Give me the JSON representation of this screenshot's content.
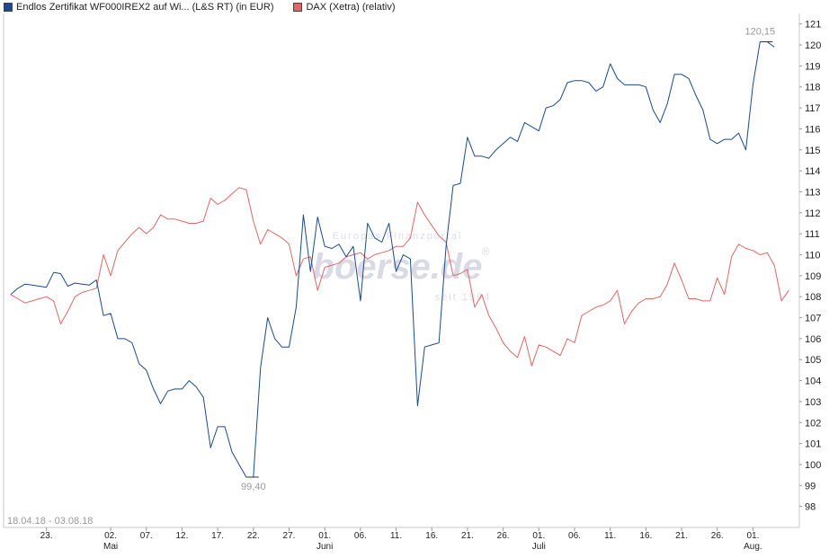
{
  "legend": [
    {
      "label": "Endlos Zertifikat WF000IREX2 auf Wi... (L&S RT) (in EUR)",
      "color": "#1a4b8a"
    },
    {
      "label": "DAX (Xetra) (relativ)",
      "color": "#e06666"
    }
  ],
  "watermark": {
    "top": "Europas Finanzportal",
    "logo": "boerse.de",
    "registered": "®",
    "bottom": "seit 1994"
  },
  "chart_data": {
    "type": "line",
    "date_range_label": "18.04.18 - 03.08.18",
    "ylim": [
      97,
      121.5
    ],
    "y_ticks": [
      98,
      99,
      100,
      101,
      102,
      103,
      104,
      105,
      106,
      107,
      108,
      109,
      110,
      111,
      112,
      113,
      114,
      115,
      116,
      117,
      118,
      119,
      120,
      121
    ],
    "x_ticks": [
      {
        "day": 5,
        "label": "23."
      },
      {
        "day": 14,
        "label": "02.",
        "sub": "Mai"
      },
      {
        "day": 19,
        "label": "07."
      },
      {
        "day": 24,
        "label": "12."
      },
      {
        "day": 29,
        "label": "17."
      },
      {
        "day": 34,
        "label": "22."
      },
      {
        "day": 39,
        "label": "27."
      },
      {
        "day": 44,
        "label": "01.",
        "sub": "Juni"
      },
      {
        "day": 49,
        "label": "06."
      },
      {
        "day": 54,
        "label": "11."
      },
      {
        "day": 59,
        "label": "16."
      },
      {
        "day": 64,
        "label": "21."
      },
      {
        "day": 69,
        "label": "26."
      },
      {
        "day": 74,
        "label": "01.",
        "sub": "Juli"
      },
      {
        "day": 79,
        "label": "06."
      },
      {
        "day": 84,
        "label": "11."
      },
      {
        "day": 89,
        "label": "16."
      },
      {
        "day": 94,
        "label": "21."
      },
      {
        "day": 99,
        "label": "26."
      },
      {
        "day": 104,
        "label": "01.",
        "sub": "Aug."
      }
    ],
    "annotations": [
      {
        "text": "120,15",
        "series": 0,
        "day": 106,
        "value": 120.15
      },
      {
        "text": "99,40",
        "series": 0,
        "day": 34,
        "value": 99.4
      }
    ],
    "series": [
      {
        "name": "Endlos Zertifikat WF000IREX2 auf Wi... (L&S RT) (in EUR)",
        "color": "#1a4b8a",
        "points": [
          [
            0,
            108.1
          ],
          [
            1,
            108.4
          ],
          [
            2,
            108.6
          ],
          [
            3,
            108.55
          ],
          [
            4,
            108.5
          ],
          [
            5,
            108.45
          ],
          [
            6,
            109.15
          ],
          [
            7,
            109.1
          ],
          [
            8,
            108.5
          ],
          [
            9,
            108.65
          ],
          [
            10,
            108.6
          ],
          [
            11,
            108.55
          ],
          [
            12,
            108.8
          ],
          [
            13,
            107.1
          ],
          [
            14,
            107.2
          ],
          [
            15,
            106.0
          ],
          [
            16,
            106.0
          ],
          [
            17,
            105.8
          ],
          [
            18,
            104.8
          ],
          [
            19,
            104.5
          ],
          [
            20,
            103.6
          ],
          [
            21,
            102.9
          ],
          [
            22,
            103.5
          ],
          [
            23,
            103.6
          ],
          [
            24,
            103.6
          ],
          [
            25,
            104.0
          ],
          [
            26,
            103.7
          ],
          [
            27,
            103.2
          ],
          [
            28,
            100.8
          ],
          [
            29,
            101.8
          ],
          [
            30,
            101.8
          ],
          [
            31,
            100.6
          ],
          [
            32,
            100.0
          ],
          [
            33,
            99.4
          ],
          [
            34,
            99.4
          ],
          [
            35,
            104.6
          ],
          [
            36,
            107.0
          ],
          [
            37,
            106.0
          ],
          [
            38,
            105.6
          ],
          [
            39,
            105.6
          ],
          [
            40,
            107.5
          ],
          [
            41,
            111.9
          ],
          [
            42,
            109.2
          ],
          [
            43,
            111.8
          ],
          [
            44,
            110.4
          ],
          [
            45,
            110.3
          ],
          [
            46,
            110.5
          ],
          [
            47,
            109.9
          ],
          [
            48,
            110.4
          ],
          [
            49,
            107.8
          ],
          [
            50,
            111.5
          ],
          [
            51,
            110.8
          ],
          [
            52,
            110.6
          ],
          [
            53,
            111.5
          ],
          [
            54,
            109.2
          ],
          [
            55,
            110.0
          ],
          [
            56,
            109.8
          ],
          [
            57,
            102.8
          ],
          [
            58,
            105.6
          ],
          [
            59,
            105.7
          ],
          [
            60,
            105.8
          ],
          [
            61,
            110.4
          ],
          [
            62,
            113.3
          ],
          [
            63,
            113.4
          ],
          [
            64,
            115.6
          ],
          [
            65,
            114.7
          ],
          [
            66,
            114.7
          ],
          [
            67,
            114.6
          ],
          [
            68,
            115.0
          ],
          [
            69,
            115.3
          ],
          [
            70,
            115.6
          ],
          [
            71,
            115.4
          ],
          [
            72,
            116.3
          ],
          [
            73,
            116.1
          ],
          [
            74,
            115.9
          ],
          [
            75,
            117.0
          ],
          [
            76,
            117.1
          ],
          [
            77,
            117.4
          ],
          [
            78,
            118.2
          ],
          [
            79,
            118.3
          ],
          [
            80,
            118.3
          ],
          [
            81,
            118.2
          ],
          [
            82,
            117.8
          ],
          [
            83,
            118.0
          ],
          [
            84,
            119.1
          ],
          [
            85,
            118.4
          ],
          [
            86,
            118.1
          ],
          [
            87,
            118.1
          ],
          [
            88,
            118.1
          ],
          [
            89,
            118.0
          ],
          [
            90,
            116.9
          ],
          [
            91,
            116.3
          ],
          [
            92,
            117.2
          ],
          [
            93,
            118.6
          ],
          [
            94,
            118.6
          ],
          [
            95,
            118.4
          ],
          [
            96,
            117.6
          ],
          [
            97,
            116.9
          ],
          [
            98,
            115.5
          ],
          [
            99,
            115.3
          ],
          [
            100,
            115.5
          ],
          [
            101,
            115.5
          ],
          [
            102,
            115.8
          ],
          [
            103,
            115.0
          ],
          [
            104,
            118.1
          ],
          [
            105,
            120.15
          ],
          [
            106,
            120.15
          ],
          [
            107,
            119.9
          ]
        ]
      },
      {
        "name": "DAX (Xetra) (relativ)",
        "color": "#e06666",
        "points": [
          [
            0,
            108.1
          ],
          [
            1,
            107.9
          ],
          [
            2,
            107.7
          ],
          [
            3,
            107.8
          ],
          [
            4,
            107.9
          ],
          [
            5,
            108.0
          ],
          [
            6,
            107.8
          ],
          [
            7,
            106.7
          ],
          [
            8,
            107.3
          ],
          [
            9,
            108.0
          ],
          [
            10,
            108.2
          ],
          [
            11,
            108.3
          ],
          [
            12,
            108.4
          ],
          [
            13,
            110.0
          ],
          [
            14,
            109.0
          ],
          [
            15,
            110.2
          ],
          [
            16,
            110.6
          ],
          [
            17,
            111.0
          ],
          [
            18,
            111.3
          ],
          [
            19,
            111.0
          ],
          [
            20,
            111.3
          ],
          [
            21,
            111.9
          ],
          [
            22,
            111.7
          ],
          [
            23,
            111.7
          ],
          [
            24,
            111.6
          ],
          [
            25,
            111.5
          ],
          [
            26,
            111.5
          ],
          [
            27,
            111.6
          ],
          [
            28,
            112.7
          ],
          [
            29,
            112.4
          ],
          [
            30,
            112.6
          ],
          [
            31,
            112.9
          ],
          [
            32,
            113.2
          ],
          [
            33,
            113.1
          ],
          [
            34,
            111.6
          ],
          [
            35,
            110.5
          ],
          [
            36,
            111.2
          ],
          [
            37,
            111.0
          ],
          [
            38,
            110.8
          ],
          [
            39,
            110.5
          ],
          [
            40,
            109.0
          ],
          [
            41,
            109.8
          ],
          [
            42,
            109.9
          ],
          [
            43,
            108.3
          ],
          [
            44,
            109.4
          ],
          [
            45,
            109.5
          ],
          [
            46,
            109.6
          ],
          [
            47,
            109.9
          ],
          [
            48,
            110.0
          ],
          [
            49,
            110.1
          ],
          [
            50,
            109.8
          ],
          [
            51,
            110.0
          ],
          [
            52,
            110.1
          ],
          [
            53,
            110.2
          ],
          [
            54,
            110.4
          ],
          [
            55,
            110.4
          ],
          [
            56,
            110.8
          ],
          [
            57,
            112.5
          ],
          [
            58,
            111.9
          ],
          [
            59,
            111.4
          ],
          [
            60,
            110.9
          ],
          [
            61,
            110.6
          ],
          [
            62,
            109.0
          ],
          [
            63,
            109.1
          ],
          [
            64,
            109.3
          ],
          [
            65,
            107.5
          ],
          [
            66,
            108.1
          ],
          [
            67,
            107.1
          ],
          [
            68,
            106.5
          ],
          [
            69,
            105.8
          ],
          [
            70,
            105.4
          ],
          [
            71,
            105.1
          ],
          [
            72,
            106.1
          ],
          [
            73,
            104.7
          ],
          [
            74,
            105.7
          ],
          [
            75,
            105.6
          ],
          [
            76,
            105.4
          ],
          [
            77,
            105.2
          ],
          [
            78,
            106.0
          ],
          [
            79,
            105.8
          ],
          [
            80,
            107.1
          ],
          [
            81,
            107.3
          ],
          [
            82,
            107.5
          ],
          [
            83,
            107.6
          ],
          [
            84,
            107.8
          ],
          [
            85,
            108.3
          ],
          [
            86,
            106.7
          ],
          [
            87,
            107.3
          ],
          [
            88,
            107.7
          ],
          [
            89,
            107.9
          ],
          [
            90,
            107.9
          ],
          [
            91,
            108.0
          ],
          [
            92,
            108.6
          ],
          [
            93,
            109.6
          ],
          [
            94,
            108.8
          ],
          [
            95,
            107.9
          ],
          [
            96,
            107.9
          ],
          [
            97,
            107.8
          ],
          [
            98,
            107.8
          ],
          [
            99,
            108.9
          ],
          [
            100,
            108.1
          ],
          [
            101,
            109.9
          ],
          [
            102,
            110.5
          ],
          [
            103,
            110.3
          ],
          [
            104,
            110.2
          ],
          [
            105,
            110.0
          ],
          [
            106,
            110.1
          ],
          [
            107,
            109.5
          ],
          [
            108,
            107.8
          ],
          [
            109,
            108.3
          ]
        ]
      }
    ]
  }
}
